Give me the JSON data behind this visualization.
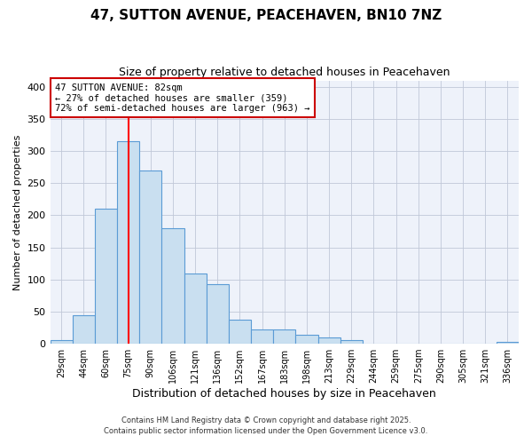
{
  "title": "47, SUTTON AVENUE, PEACEHAVEN, BN10 7NZ",
  "subtitle": "Size of property relative to detached houses in Peacehaven",
  "xlabel": "Distribution of detached houses by size in Peacehaven",
  "ylabel": "Number of detached properties",
  "bar_labels": [
    "29sqm",
    "44sqm",
    "60sqm",
    "75sqm",
    "90sqm",
    "106sqm",
    "121sqm",
    "136sqm",
    "152sqm",
    "167sqm",
    "183sqm",
    "198sqm",
    "213sqm",
    "229sqm",
    "244sqm",
    "259sqm",
    "275sqm",
    "290sqm",
    "305sqm",
    "321sqm",
    "336sqm"
  ],
  "bar_values": [
    5,
    44,
    210,
    315,
    270,
    180,
    110,
    93,
    38,
    22,
    22,
    14,
    10,
    5,
    0,
    0,
    0,
    0,
    0,
    0,
    3
  ],
  "bar_color": "#c9dff0",
  "bar_edge_color": "#5b9bd5",
  "ylim": [
    0,
    410
  ],
  "yticks": [
    0,
    50,
    100,
    150,
    200,
    250,
    300,
    350,
    400
  ],
  "vline_color": "red",
  "annotation_title": "47 SUTTON AVENUE: 82sqm",
  "annotation_line1": "← 27% of detached houses are smaller (359)",
  "annotation_line2": "72% of semi-detached houses are larger (963) →",
  "bg_color": "#ffffff",
  "plot_bg_color": "#eef2fa",
  "grid_color": "#c0c8d8",
  "footer1": "Contains HM Land Registry data © Crown copyright and database right 2025.",
  "footer2": "Contains public sector information licensed under the Open Government Licence v3.0."
}
